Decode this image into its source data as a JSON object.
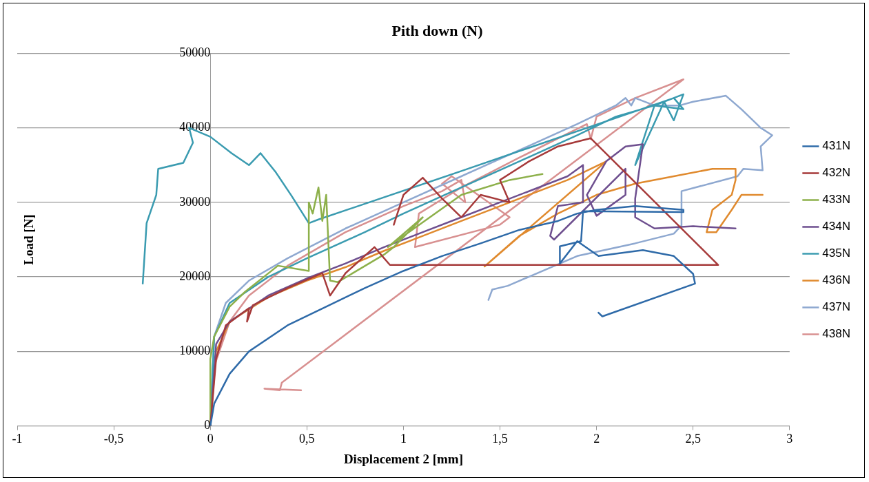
{
  "chart_data": {
    "type": "line",
    "title": "Pith down (N)",
    "xlabel": "Displacement 2 [mm]",
    "ylabel": "Load [N]",
    "xlim": [
      -1,
      3
    ],
    "xticks": [
      -1,
      {
        "value": -0.5,
        "label": "-0,5"
      },
      0,
      {
        "value": 0.5,
        "label": "0,5"
      },
      1,
      {
        "value": 1.5,
        "label": "1,5"
      },
      2,
      {
        "value": 2.5,
        "label": "2,5"
      },
      3
    ],
    "ylim": [
      0,
      50000
    ],
    "yticks": [
      0,
      10000,
      20000,
      30000,
      40000,
      50000
    ],
    "grid": "y",
    "legend": "right",
    "series": [
      {
        "name": "431N",
        "color": "#2e6aa8",
        "x": [
          0,
          0.02,
          0.1,
          0.2,
          0.4,
          0.6,
          0.8,
          1.0,
          1.2,
          1.4,
          1.6,
          1.8,
          1.9,
          2.0,
          2.2,
          2.45,
          2.45,
          1.93,
          1.92,
          1.81,
          1.81,
          1.9,
          2.01,
          2.24,
          2.4,
          2.5,
          2.51,
          2.03,
          2.01
        ],
        "values": [
          0,
          3000,
          7000,
          10000,
          13500,
          16000,
          18500,
          20800,
          22800,
          24500,
          26300,
          27500,
          28500,
          29000,
          29500,
          29000,
          28700,
          28800,
          24800,
          24100,
          21800,
          24800,
          22800,
          23600,
          22800,
          20400,
          19100,
          14700,
          15200
        ]
      },
      {
        "name": "432N",
        "color": "#a63a3a",
        "x": [
          0,
          0.03,
          0.08,
          0.2,
          0.19,
          0.22,
          0.4,
          0.58,
          0.62,
          0.7,
          0.85,
          0.93,
          2.63,
          1.97,
          1.8,
          1.65,
          1.5,
          1.55,
          1.4,
          1.3,
          1.2,
          1.1,
          1.0,
          0.95
        ],
        "values": [
          0,
          9000,
          13500,
          15800,
          14000,
          16200,
          18500,
          20500,
          17500,
          20500,
          24000,
          21600,
          21600,
          38600,
          37500,
          35500,
          33000,
          30000,
          31000,
          28000,
          30500,
          33300,
          31000,
          27000
        ]
      },
      {
        "name": "433N",
        "color": "#8db04a",
        "x": [
          0,
          0,
          0.02,
          0.1,
          0.18,
          0.35,
          0.51,
          0.51,
          0.53,
          0.56,
          0.58,
          0.6,
          0.62,
          0.66,
          0.9,
          0.95,
          1.1,
          0.92,
          1.3,
          1.55,
          1.72
        ],
        "values": [
          0,
          9000,
          12000,
          16000,
          18000,
          21500,
          20800,
          30000,
          28500,
          32000,
          27500,
          31000,
          19500,
          19300,
          23000,
          24000,
          28000,
          24000,
          31000,
          33000,
          33800
        ]
      },
      {
        "name": "434N",
        "color": "#6e4f8f",
        "x": [
          0,
          0.03,
          0.1,
          0.3,
          0.5,
          0.7,
          0.9,
          1.1,
          1.3,
          1.5,
          1.7,
          1.85,
          1.93,
          1.93,
          1.8,
          1.76,
          1.78,
          2.15,
          2.15,
          2.0,
          1.95,
          2.05,
          2.15,
          2.24,
          2.2,
          2.2,
          2.3,
          2.5,
          2.72
        ],
        "values": [
          0,
          11000,
          14000,
          17500,
          19800,
          21800,
          24000,
          26000,
          28000,
          30000,
          32000,
          33500,
          35000,
          30000,
          29500,
          25500,
          25000,
          34500,
          31000,
          28200,
          31000,
          35500,
          37500,
          37800,
          30500,
          28000,
          26500,
          26800,
          26500
        ]
      },
      {
        "name": "435N",
        "color": "#3a9bb0",
        "x": [
          0,
          0.02,
          0.1,
          0.3,
          0.5,
          0.8,
          1.0,
          1.3,
          1.6,
          1.9,
          2.1,
          2.3,
          2.45,
          2.4,
          2.35,
          2.2,
          2.3,
          2.45,
          2.4,
          1.3,
          0.56,
          0.51,
          0.42,
          0.34,
          0.26,
          0.2,
          0.11,
          0,
          -0.11,
          -0.09,
          -0.14,
          -0.27,
          -0.28,
          -0.33,
          -0.35
        ],
        "values": [
          0,
          12000,
          16500,
          20000,
          22500,
          26000,
          28500,
          32000,
          35500,
          39000,
          41500,
          43000,
          44500,
          41000,
          43500,
          35000,
          43000,
          42500,
          44000,
          34200,
          27700,
          27200,
          30900,
          34000,
          36600,
          35000,
          36600,
          38800,
          40000,
          38000,
          35300,
          34500,
          31000,
          27200,
          19100
        ]
      },
      {
        "name": "436N",
        "color": "#e08a2e",
        "x": [
          0,
          0.03,
          0.1,
          0.3,
          0.5,
          0.7,
          0.9,
          1.1,
          1.3,
          1.5,
          1.7,
          1.85,
          2.05,
          1.42,
          1.6,
          1.8,
          2.0,
          2.2,
          2.4,
          2.6,
          2.72,
          2.72,
          2.7,
          2.6,
          2.57,
          2.62,
          2.7,
          2.75,
          2.86
        ],
        "values": [
          0,
          10000,
          14000,
          17300,
          19500,
          21300,
          23500,
          25500,
          27500,
          29500,
          31500,
          33000,
          35500,
          21400,
          25500,
          28500,
          31000,
          32500,
          33500,
          34500,
          34500,
          33000,
          31000,
          29000,
          26000,
          26000,
          29000,
          31000,
          31000
        ]
      },
      {
        "name": "437N",
        "color": "#8ea8d0",
        "x": [
          0,
          0.02,
          0.08,
          0.2,
          0.4,
          0.7,
          1.0,
          1.3,
          1.6,
          1.9,
          2.1,
          2.15,
          2.18,
          2.2,
          2.3,
          2.43,
          2.5,
          2.67,
          2.75,
          2.85,
          2.91,
          2.85,
          2.86,
          2.76,
          2.73,
          2.44,
          2.44,
          2.4,
          2.2,
          1.9,
          1.54,
          1.46,
          1.44
        ],
        "values": [
          0,
          12000,
          16500,
          19500,
          22500,
          26500,
          30000,
          33500,
          37000,
          40500,
          43000,
          44000,
          43000,
          44000,
          43000,
          43000,
          43500,
          44300,
          42500,
          40000,
          39000,
          37500,
          34300,
          34500,
          33500,
          31500,
          26900,
          25800,
          24500,
          22800,
          18800,
          18300,
          16900
        ]
      },
      {
        "name": "438N",
        "color": "#d89090",
        "x": [
          0,
          0.02,
          0.1,
          0.2,
          0.4,
          0.7,
          1.0,
          1.2,
          1.3,
          1.32,
          1.2,
          1.25,
          1.55,
          1.5,
          1.06,
          1.08,
          1.3,
          1.6,
          1.95,
          1.97,
          2.0,
          2.2,
          2.45,
          0.37,
          0.36,
          0.28,
          0.47
        ],
        "values": [
          0,
          8000,
          14000,
          17500,
          21500,
          26000,
          29500,
          31500,
          33000,
          30000,
          32500,
          33500,
          28000,
          27000,
          24000,
          28500,
          32000,
          36000,
          40500,
          38500,
          41500,
          44000,
          46500,
          5800,
          4800,
          5000,
          4800
        ]
      }
    ]
  }
}
